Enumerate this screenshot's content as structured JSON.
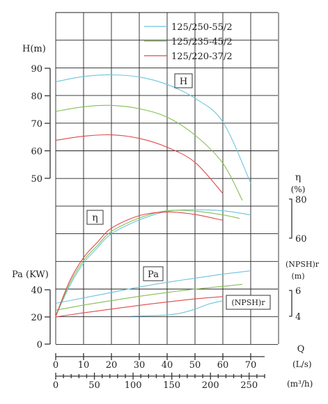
{
  "chart_data": {
    "type": "line",
    "legend": {
      "placement": "top-right",
      "entries": [
        {
          "label": "125/250-55/2",
          "color": "#6cc3dd"
        },
        {
          "label": "125/235-45/2",
          "color": "#86bd52"
        },
        {
          "label": "125/220-37/2",
          "color": "#e0484a"
        }
      ]
    },
    "x_axis": {
      "q_label": "Q",
      "ls": {
        "unit": "(L/s)",
        "range": [
          0,
          75
        ],
        "ticks": [
          "0",
          "10",
          "20",
          "30",
          "40",
          "50",
          "60",
          "70"
        ]
      },
      "m3h": {
        "unit": "(m³/h)",
        "range": [
          0,
          270
        ],
        "ticks": [
          "0",
          "50",
          "100",
          "150",
          "200",
          "250"
        ]
      }
    },
    "head_axis": {
      "label": "H(m)",
      "range": [
        50,
        90
      ],
      "ticks": [
        "50",
        "60",
        "70",
        "80",
        "90"
      ]
    },
    "eff_axis": {
      "label": "η",
      "unit": "(%)",
      "range": [
        60,
        80
      ],
      "ticks": [
        "80",
        "60"
      ]
    },
    "power_axis": {
      "label": "Pa (KW)",
      "range": [
        0,
        40
      ],
      "ticks": [
        "0",
        "20",
        "40"
      ]
    },
    "npsh_axis": {
      "label": "(NPSH)r",
      "unit": "(m)",
      "range": [
        4,
        6
      ],
      "ticks": [
        "6",
        "4"
      ]
    },
    "curve_labels": {
      "head": "H",
      "efficiency": "η",
      "power": "Pa",
      "npsh": "(NPSH)r"
    },
    "grid": true,
    "series": [
      {
        "name": "125/250-55/2",
        "color": "#6cc3dd",
        "head": {
          "x": [
            0,
            10,
            20,
            30,
            40,
            50,
            60,
            70
          ],
          "y": [
            85.1,
            87.0,
            87.6,
            86.8,
            84.1,
            79.1,
            70.5,
            48.3
          ]
        },
        "efficiency": {
          "x": [
            0,
            5,
            10,
            15,
            20,
            30,
            40,
            50,
            60,
            70
          ],
          "y": [
            20,
            35.5,
            47.2,
            55.1,
            62.2,
            69.3,
            73.7,
            74.5,
            74.0,
            71.9
          ]
        },
        "power": {
          "x": [
            0,
            10,
            20,
            30,
            40,
            50,
            60,
            70
          ],
          "y": [
            30.0,
            34.0,
            38.0,
            42.0,
            45.5,
            48.5,
            51.5,
            54.0
          ]
        },
        "npsh": {
          "x": [
            27,
            35,
            40,
            45,
            50,
            55,
            60
          ],
          "y": [
            4.0,
            4.05,
            4.1,
            4.25,
            4.55,
            4.95,
            5.2
          ]
        }
      },
      {
        "name": "125/235-45/2",
        "color": "#86bd52",
        "head": {
          "x": [
            0,
            10,
            20,
            30,
            40,
            50,
            60,
            67
          ],
          "y": [
            74.3,
            76.0,
            76.5,
            75.3,
            72.2,
            65.7,
            55.5,
            42.0
          ]
        },
        "efficiency": {
          "x": [
            0,
            5,
            10,
            15,
            20,
            30,
            40,
            50,
            60,
            66
          ],
          "y": [
            20,
            36.7,
            48.5,
            56.3,
            63.4,
            70.3,
            74.0,
            73.8,
            71.9,
            70.1
          ]
        },
        "power": {
          "x": [
            0,
            10,
            20,
            30,
            40,
            50,
            60,
            67
          ],
          "y": [
            25.0,
            28.7,
            32.0,
            35.2,
            38.0,
            40.5,
            42.5,
            44.0
          ]
        }
      },
      {
        "name": "125/220-37/2",
        "color": "#e0484a",
        "head": {
          "x": [
            0,
            10,
            20,
            30,
            40,
            50,
            60
          ],
          "y": [
            63.8,
            65.3,
            65.8,
            64.5,
            61.3,
            55.8,
            44.5
          ]
        },
        "efficiency": {
          "x": [
            0,
            5,
            10,
            15,
            20,
            30,
            40,
            50,
            60
          ],
          "y": [
            20,
            38.0,
            50.0,
            57.9,
            65.1,
            71.5,
            73.4,
            72.1,
            69.1
          ]
        },
        "power": {
          "x": [
            0,
            10,
            20,
            30,
            40,
            50,
            60
          ],
          "y": [
            20.0,
            23.0,
            25.8,
            28.5,
            31.0,
            33.3,
            35.0
          ]
        }
      }
    ]
  }
}
